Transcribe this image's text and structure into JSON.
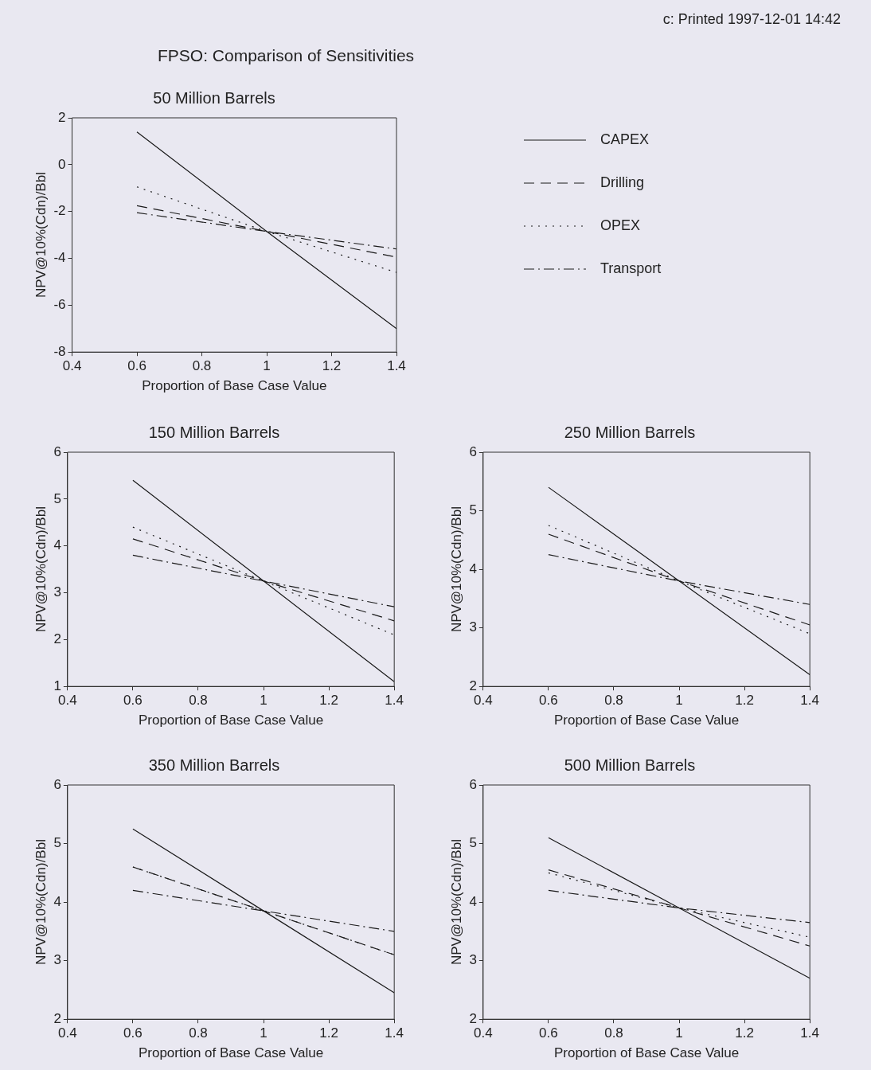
{
  "chart_data": [
    {
      "type": "line",
      "title": "50 Million Barrels",
      "xlabel": "Proportion of Base Case Value",
      "ylabel": "NPV@10%(Cdn)/Bbl",
      "annotations": [
        "c: Printed 1997-12-01 14:42",
        "FPSO: Comparison of Sensitivities"
      ],
      "x": [
        0.6,
        1,
        1.4
      ],
      "xlim": [
        0.4,
        1.4
      ],
      "xticks": [
        0.4,
        0.6,
        0.8,
        1,
        1.2,
        1.4
      ],
      "ylim": [
        -8,
        2
      ],
      "yticks": [
        -8,
        -6,
        -4,
        -2,
        0,
        2
      ],
      "grid": false,
      "legend": "right",
      "marker": "none",
      "series": [
        {
          "name": "CAPEX",
          "color": "#1a1a1a",
          "line_style": "solid",
          "values": [
            1.4,
            -2.85,
            -7.0
          ]
        },
        {
          "name": "Drilling",
          "color": "#1a1a1a",
          "line_style": "dashed",
          "values": [
            -1.75,
            -2.85,
            -3.95
          ]
        },
        {
          "name": "OPEX",
          "color": "#1a1a1a",
          "line_style": "dotted",
          "values": [
            -0.95,
            -2.85,
            -4.6
          ]
        },
        {
          "name": "Transport",
          "color": "#1a1a1a",
          "line_style": "dashdot",
          "values": [
            -2.05,
            -2.85,
            -3.6
          ]
        }
      ]
    },
    {
      "type": "line",
      "title": "150 Million Barrels",
      "xlabel": "Proportion of Base Case Value",
      "ylabel": "NPV@10%(Cdn)/Bbl",
      "x": [
        0.6,
        1,
        1.4
      ],
      "xlim": [
        0.4,
        1.4
      ],
      "xticks": [
        0.4,
        0.6,
        0.8,
        1,
        1.2,
        1.4
      ],
      "ylim": [
        1,
        6
      ],
      "yticks": [
        1,
        2,
        3,
        4,
        5,
        6
      ],
      "grid": false,
      "marker": "none",
      "series": [
        {
          "color": "#1a1a1a",
          "line_style": "solid",
          "values": [
            5.4,
            3.25,
            1.1
          ]
        },
        {
          "color": "#1a1a1a",
          "line_style": "dashed",
          "values": [
            4.15,
            3.25,
            2.4
          ]
        },
        {
          "color": "#1a1a1a",
          "line_style": "dotted",
          "values": [
            4.4,
            3.25,
            2.1
          ]
        },
        {
          "color": "#1a1a1a",
          "line_style": "dashdot",
          "values": [
            3.8,
            3.25,
            2.7
          ]
        }
      ]
    },
    {
      "type": "line",
      "title": "250 Million Barrels",
      "xlabel": "Proportion of Base Case Value",
      "ylabel": "NPV@10%(Cdn)/Bbl",
      "x": [
        0.6,
        1,
        1.4
      ],
      "xlim": [
        0.4,
        1.4
      ],
      "xticks": [
        0.4,
        0.6,
        0.8,
        1,
        1.2,
        1.4
      ],
      "ylim": [
        2,
        6
      ],
      "yticks": [
        2,
        3,
        4,
        5,
        6
      ],
      "grid": false,
      "marker": "none",
      "series": [
        {
          "color": "#1a1a1a",
          "line_style": "solid",
          "values": [
            5.4,
            3.8,
            2.2
          ]
        },
        {
          "color": "#1a1a1a",
          "line_style": "dashed",
          "values": [
            4.6,
            3.8,
            3.05
          ]
        },
        {
          "color": "#1a1a1a",
          "line_style": "dotted",
          "values": [
            4.75,
            3.8,
            2.9
          ]
        },
        {
          "color": "#1a1a1a",
          "line_style": "dashdot",
          "values": [
            4.25,
            3.8,
            3.4
          ]
        }
      ]
    },
    {
      "type": "line",
      "title": "350 Million Barrels",
      "xlabel": "Proportion of Base Case Value",
      "ylabel": "NPV@10%(Cdn)/Bbl",
      "x": [
        0.6,
        1,
        1.4
      ],
      "xlim": [
        0.4,
        1.4
      ],
      "xticks": [
        0.4,
        0.6,
        0.8,
        1,
        1.2,
        1.4
      ],
      "ylim": [
        2,
        6
      ],
      "yticks": [
        2,
        3,
        4,
        5,
        6
      ],
      "grid": false,
      "marker": "none",
      "series": [
        {
          "color": "#1a1a1a",
          "line_style": "solid",
          "values": [
            5.25,
            3.85,
            2.45
          ]
        },
        {
          "color": "#1a1a1a",
          "line_style": "dashed",
          "values": [
            4.6,
            3.85,
            3.1
          ]
        },
        {
          "color": "#1a1a1a",
          "line_style": "dotted",
          "values": [
            4.6,
            3.85,
            3.1
          ]
        },
        {
          "color": "#1a1a1a",
          "line_style": "dashdot",
          "values": [
            4.2,
            3.85,
            3.5
          ]
        }
      ]
    },
    {
      "type": "line",
      "title": "500 Million Barrels",
      "xlabel": "Proportion of Base Case Value",
      "ylabel": "NPV@10%(Cdn)/Bbl",
      "x": [
        0.6,
        1,
        1.4
      ],
      "xlim": [
        0.4,
        1.4
      ],
      "xticks": [
        0.4,
        0.6,
        0.8,
        1,
        1.2,
        1.4
      ],
      "ylim": [
        2,
        6
      ],
      "yticks": [
        2,
        3,
        4,
        5,
        6
      ],
      "grid": false,
      "marker": "none",
      "series": [
        {
          "color": "#1a1a1a",
          "line_style": "solid",
          "values": [
            5.1,
            3.9,
            2.7
          ]
        },
        {
          "color": "#1a1a1a",
          "line_style": "dashed",
          "values": [
            4.55,
            3.9,
            3.25
          ]
        },
        {
          "color": "#1a1a1a",
          "line_style": "dotted",
          "values": [
            4.5,
            3.9,
            3.4
          ]
        },
        {
          "color": "#1a1a1a",
          "line_style": "dashdot",
          "values": [
            4.2,
            3.9,
            3.65
          ]
        }
      ]
    }
  ]
}
